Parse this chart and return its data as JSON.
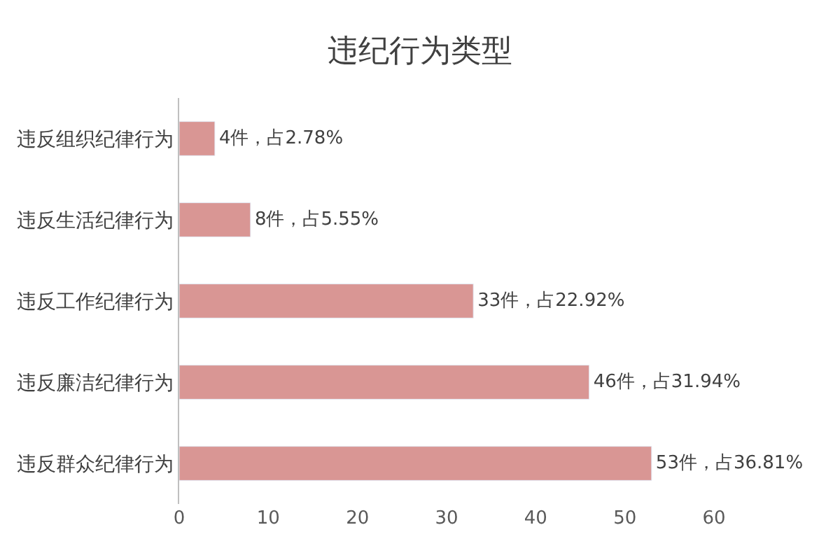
{
  "chart_data": {
    "type": "bar",
    "orientation": "horizontal",
    "title": "违纪行为类型",
    "categories": [
      "违反组织纪律行为",
      "违反生活纪律行为",
      "违反工作纪律行为",
      "违反廉洁纪律行为",
      "违反群众纪律行为"
    ],
    "values": [
      4,
      8,
      33,
      46,
      53
    ],
    "value_labels": [
      "4件，占2.78%",
      "8件，占5.55%",
      "33件，占22.92%",
      "46件，占31.94%",
      "53件，占36.81%"
    ],
    "color": "#d99694",
    "xlim": [
      0,
      60
    ],
    "xticks": [
      0,
      10,
      20,
      30,
      40,
      50,
      60
    ],
    "grid": false,
    "legend": false
  }
}
